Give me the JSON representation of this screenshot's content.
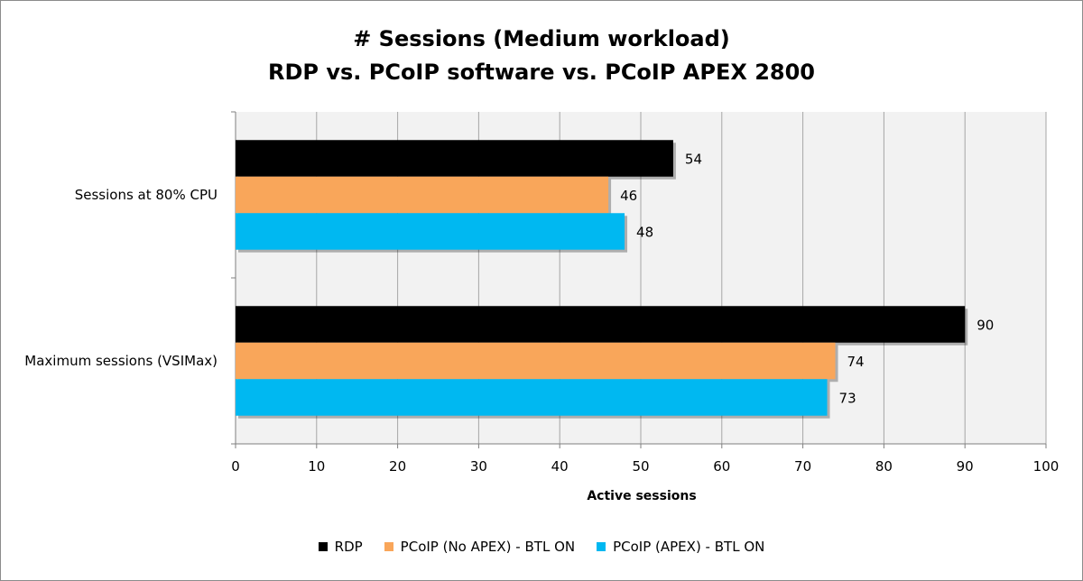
{
  "chart_data": {
    "type": "bar",
    "orientation": "horizontal",
    "title_line1": "# Sessions (Medium workload)",
    "title_line2": "RDP vs. PCoIP software vs. PCoIP APEX 2800",
    "xlabel": "Active sessions",
    "ylabel": "",
    "xlim": [
      0,
      100
    ],
    "ticks": [
      "0",
      "10",
      "20",
      "30",
      "40",
      "50",
      "60",
      "70",
      "80",
      "90",
      "100"
    ],
    "grid": true,
    "legend_position": "bottom",
    "categories": [
      "Sessions at 80% CPU",
      "Maximum sessions (VSIMax)"
    ],
    "series": [
      {
        "name": "RDP",
        "color": "#000000",
        "values": [
          54,
          90
        ]
      },
      {
        "name": "PCoIP (No APEX) - BTL ON",
        "color": "#f9a65a",
        "values": [
          46,
          74
        ]
      },
      {
        "name": "PCoIP (APEX) - BTL ON",
        "color": "#00b8f1",
        "values": [
          48,
          73
        ]
      }
    ]
  }
}
